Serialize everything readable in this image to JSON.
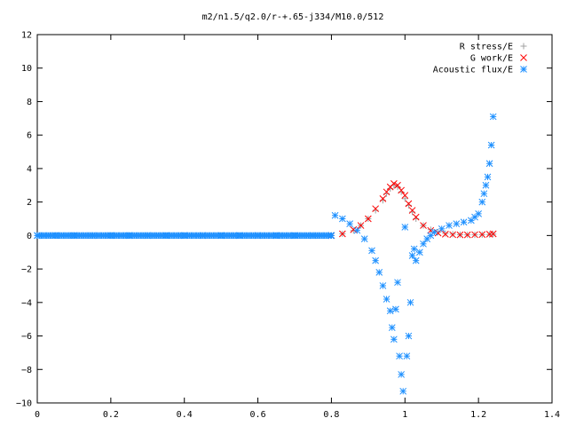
{
  "chart_data": {
    "type": "scatter",
    "title": "m2/n1.5/q2.0/r-+.65-j334/M10.0/512",
    "xlabel": "",
    "ylabel": "",
    "xlim": [
      0,
      1.4
    ],
    "ylim": [
      -10,
      12
    ],
    "xticks": [
      "0",
      "0.2",
      "0.4",
      "0.6",
      "0.8",
      "1",
      "1.2",
      "1.4"
    ],
    "yticks": [
      "12",
      "10",
      "8",
      "6",
      "4",
      "2",
      "0",
      "−2",
      "−4",
      "−6",
      "−8",
      "−10"
    ],
    "grid": false,
    "legend_position": "top-right",
    "series": [
      {
        "name": "R stress/E",
        "marker": "plus",
        "color": "#a0a0a0",
        "x": [
          0.8,
          0.83,
          0.86,
          0.88,
          0.9,
          0.92,
          0.94,
          0.95,
          0.96,
          0.97,
          0.98,
          0.99,
          1.0,
          1.01,
          1.02,
          1.03,
          1.05,
          1.07,
          1.09,
          1.11,
          1.13,
          1.15,
          1.17,
          1.19,
          1.21,
          1.23,
          1.24
        ],
        "y": [
          0.0,
          0.1,
          0.3,
          0.6,
          1.0,
          1.5,
          2.1,
          2.5,
          2.8,
          3.0,
          2.9,
          2.6,
          2.2,
          1.8,
          1.4,
          1.0,
          0.6,
          0.35,
          0.2,
          0.12,
          0.08,
          0.05,
          0.04,
          0.04,
          0.05,
          0.06,
          0.08
        ]
      },
      {
        "name": "G work/E",
        "marker": "cross",
        "color": "#ff0000",
        "x": [
          0.8,
          0.83,
          0.86,
          0.88,
          0.9,
          0.92,
          0.94,
          0.95,
          0.96,
          0.97,
          0.98,
          0.99,
          1.0,
          1.01,
          1.02,
          1.03,
          1.05,
          1.07,
          1.09,
          1.11,
          1.13,
          1.15,
          1.17,
          1.19,
          1.21,
          1.23,
          1.24
        ],
        "y": [
          0.0,
          0.1,
          0.35,
          0.6,
          1.0,
          1.6,
          2.2,
          2.6,
          2.9,
          3.1,
          3.0,
          2.7,
          2.4,
          1.9,
          1.5,
          1.1,
          0.6,
          0.3,
          0.15,
          0.08,
          0.05,
          0.04,
          0.04,
          0.05,
          0.06,
          0.08,
          0.1
        ]
      },
      {
        "name": "Acoustic flux/E",
        "marker": "star",
        "color": "#1e90ff",
        "x": [
          0.0,
          0.05,
          0.1,
          0.15,
          0.2,
          0.25,
          0.3,
          0.35,
          0.4,
          0.45,
          0.5,
          0.55,
          0.6,
          0.65,
          0.7,
          0.75,
          0.8,
          0.81,
          0.83,
          0.85,
          0.87,
          0.89,
          0.91,
          0.92,
          0.93,
          0.94,
          0.95,
          0.96,
          0.965,
          0.97,
          0.975,
          0.98,
          0.985,
          0.99,
          0.995,
          1.0,
          1.005,
          1.01,
          1.015,
          1.02,
          1.025,
          1.03,
          1.04,
          1.05,
          1.06,
          1.07,
          1.08,
          1.1,
          1.12,
          1.14,
          1.16,
          1.18,
          1.19,
          1.2,
          1.21,
          1.215,
          1.22,
          1.225,
          1.23,
          1.235,
          1.24
        ],
        "y": [
          0.0,
          0.0,
          0.0,
          0.0,
          0.0,
          0.0,
          0.0,
          0.0,
          0.0,
          0.0,
          0.0,
          0.0,
          0.0,
          0.0,
          0.0,
          0.0,
          0.0,
          1.2,
          1.0,
          0.7,
          0.3,
          -0.2,
          -0.9,
          -1.5,
          -2.2,
          -3.0,
          -3.8,
          -4.5,
          -5.5,
          -6.2,
          -4.4,
          -2.8,
          -7.2,
          -8.3,
          -9.3,
          0.5,
          -7.2,
          -6.0,
          -4.0,
          -1.2,
          -0.8,
          -1.5,
          -1.0,
          -0.5,
          -0.2,
          0.0,
          0.2,
          0.4,
          0.6,
          0.7,
          0.8,
          0.9,
          1.1,
          1.3,
          2.0,
          2.5,
          3.0,
          3.5,
          4.3,
          5.4,
          7.1
        ]
      }
    ]
  }
}
